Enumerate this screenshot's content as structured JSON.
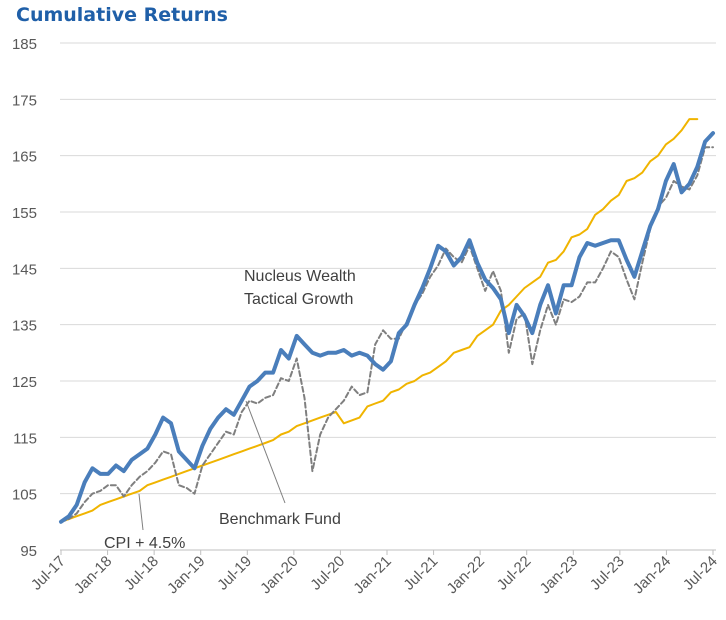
{
  "chart_data": {
    "type": "line",
    "title": "Cumulative Returns",
    "ylim": [
      95,
      185
    ],
    "y_ticks": [
      95,
      105,
      115,
      125,
      135,
      145,
      155,
      165,
      175,
      185
    ],
    "x_tick_labels": [
      "Jul-17",
      "Jan-18",
      "Jul-18",
      "Jan-19",
      "Jul-19",
      "Jan-20",
      "Jul-20",
      "Jan-21",
      "Jul-21",
      "Jan-22",
      "Jul-22",
      "Jan-23",
      "Jul-23",
      "Jan-24",
      "Jul-24"
    ],
    "grid": "horizontal",
    "annotations": [
      {
        "text": "Nucleus Wealth",
        "target_series": 0
      },
      {
        "text": "Tactical Growth",
        "target_series": 0
      },
      {
        "text": "Benchmark Fund",
        "target_series": 1
      },
      {
        "text": "CPI + 4.5%",
        "target_series": 2
      }
    ],
    "series": [
      {
        "name": "Nucleus Wealth Tactical Growth",
        "color": "#4a7ebb",
        "style": "solid-thick",
        "values": [
          100,
          101,
          103,
          107,
          109.5,
          108.5,
          108.5,
          110,
          109,
          111,
          112,
          113,
          115.5,
          118.5,
          117.5,
          112.5,
          111,
          109.5,
          113.5,
          116.5,
          118.5,
          120,
          119,
          121.5,
          124,
          125,
          126.5,
          126.5,
          130.5,
          129,
          133,
          131.5,
          130,
          129.5,
          130,
          130,
          130.5,
          129.5,
          130,
          129.5,
          128,
          127,
          128.5,
          133.5,
          135,
          138.5,
          141.5,
          145,
          149,
          148,
          145.5,
          147,
          150,
          146,
          143,
          141.5,
          139.5,
          133.5,
          138.5,
          136.5,
          133.5,
          138.5,
          142,
          137,
          142,
          142,
          147,
          149.5,
          149,
          149.5,
          150,
          150,
          146.5,
          143.5,
          148,
          152.5,
          155.5,
          160.5,
          163.5,
          158.5,
          160,
          163,
          167.5,
          169
        ]
      },
      {
        "name": "Benchmark Fund",
        "color": "#7f7f7f",
        "style": "dashed",
        "values": [
          100,
          100.5,
          101.5,
          103.5,
          105,
          105.5,
          106.5,
          106.5,
          104.5,
          106.5,
          108,
          109,
          110.5,
          112.5,
          112,
          106.5,
          106,
          105,
          110,
          112,
          114,
          116,
          115.5,
          119.5,
          121.5,
          121,
          122,
          122.5,
          125.5,
          125,
          129,
          122,
          109,
          115.5,
          118.5,
          120,
          121.5,
          124,
          122.5,
          123,
          131.5,
          134,
          132.5,
          132.5,
          135.5,
          138.5,
          140.5,
          143.5,
          145.5,
          148.5,
          147,
          146,
          149,
          145,
          141,
          144.5,
          141,
          130,
          136,
          137,
          128,
          134,
          138.5,
          135,
          139.5,
          139,
          140,
          142.5,
          142.5,
          145,
          148,
          147,
          143,
          139.5,
          146,
          152,
          156,
          157.5,
          160.5,
          159.5,
          159,
          161.5,
          166.5,
          166.5
        ]
      },
      {
        "name": "CPI + 4.5%",
        "color": "#f0b400",
        "style": "solid",
        "values": [
          100,
          100.5,
          101,
          101.5,
          102,
          103,
          103.5,
          104,
          104.5,
          105,
          105.5,
          106.5,
          107,
          107.5,
          108,
          108.5,
          109,
          109.5,
          110,
          110.5,
          111,
          111.5,
          112,
          112.5,
          113,
          113.5,
          114,
          114.5,
          115.5,
          116,
          117,
          117.5,
          118,
          118.5,
          119,
          119.5,
          117.5,
          118,
          118.5,
          120.5,
          121,
          121.5,
          123,
          123.5,
          124.5,
          125,
          126,
          126.5,
          127.5,
          128.5,
          130,
          130.5,
          131,
          133,
          134,
          135,
          137.5,
          138.5,
          140,
          141.5,
          142.5,
          143.5,
          146,
          146.5,
          148,
          150.5,
          151,
          152,
          154.5,
          155.5,
          157,
          158,
          160.5,
          161,
          162,
          164,
          165,
          167,
          168,
          169.5,
          171.5,
          171.5
        ]
      }
    ]
  }
}
